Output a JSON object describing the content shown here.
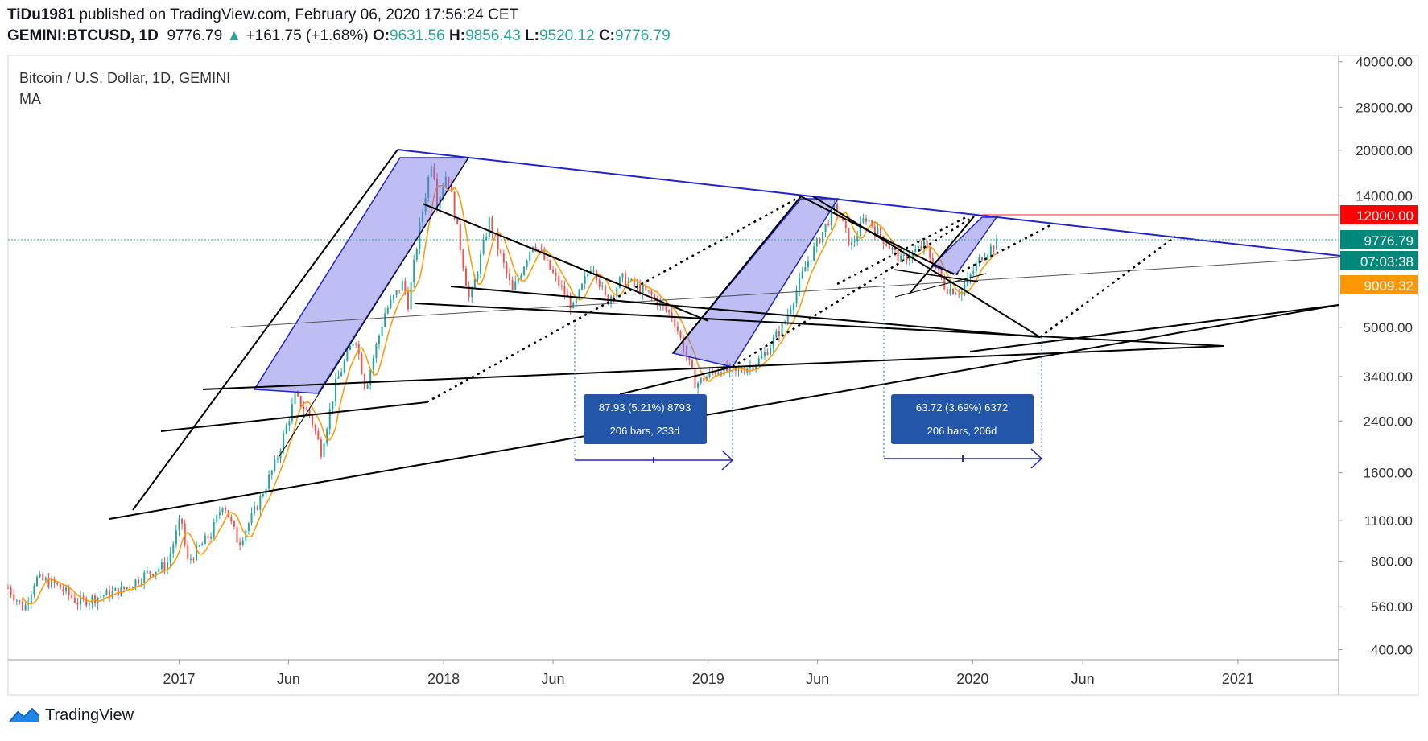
{
  "header": {
    "publisher": "TiDu1981",
    "published_text": "published on TradingView.com, February 06, 2020 17:56:24 CET",
    "symbol": "GEMINI:BTCUSD, 1D",
    "last": "9776.79",
    "arrow": "▲",
    "change": "+161.75 (+1.68%)",
    "o_label": "O:",
    "o": "9631.56",
    "h_label": "H:",
    "h": "9856.43",
    "l_label": "L:",
    "l": "9520.12",
    "c_label": "C:",
    "c": "9776.79"
  },
  "legend": {
    "title": "Bitcoin / U.S. Dollar, 1D, GEMINI",
    "indicator": "MA"
  },
  "price_badges": {
    "level": "12000.00",
    "last": "9776.79",
    "countdown": "07:03:38",
    "ma": "9009.32"
  },
  "measure_boxes": [
    {
      "line1": "87.93 (5.21%) 8793",
      "line2": "206 bars, 233d"
    },
    {
      "line1": "63.72 (3.69%) 6372",
      "line2": "206 bars, 206d"
    }
  ],
  "footer": {
    "brand": "TradingView"
  },
  "colors": {
    "up": "#26a69a",
    "down": "#ef5350",
    "ma": "#ff9800",
    "trend_blue": "#2124c8",
    "fill": "rgba(110,110,230,0.45)",
    "badge_red": "#ff0000",
    "badge_teal": "#00897b",
    "badge_orange": "#ff9800",
    "measure_box": "#2356a8"
  },
  "chart_data": {
    "type": "candlestick",
    "title": "Bitcoin / U.S. Dollar, 1D, GEMINI",
    "y_scale": "log",
    "ylim": [
      370,
      42000
    ],
    "x_range": [
      "2016-05-10",
      "2021-05-20"
    ],
    "y_ticks": [
      "40000.00",
      "28000.00",
      "20000.00",
      "14000.00",
      "5000.00",
      "3400.00",
      "2400.00",
      "1600.00",
      "1100.00",
      "800.00",
      "560.00",
      "400.00"
    ],
    "x_ticks": [
      {
        "label": "2017",
        "date": "2017-01-01"
      },
      {
        "label": "Jun",
        "date": "2017-06-01"
      },
      {
        "label": "2018",
        "date": "2018-01-01"
      },
      {
        "label": "Jun",
        "date": "2018-06-01"
      },
      {
        "label": "2019",
        "date": "2019-01-01"
      },
      {
        "label": "Jun",
        "date": "2019-06-01"
      },
      {
        "label": "2020",
        "date": "2020-01-01"
      },
      {
        "label": "Jun",
        "date": "2020-06-01"
      },
      {
        "label": "2021",
        "date": "2021-01-01"
      }
    ],
    "series": [
      {
        "name": "BTCUSD",
        "points": [
          [
            "2016-05-10",
            650
          ],
          [
            "2016-06-01",
            550
          ],
          [
            "2016-06-17",
            700
          ],
          [
            "2016-07-15",
            665
          ],
          [
            "2016-08-15",
            580
          ],
          [
            "2016-09-15",
            610
          ],
          [
            "2016-10-15",
            640
          ],
          [
            "2016-11-15",
            720
          ],
          [
            "2016-12-15",
            780
          ],
          [
            "2017-01-04",
            1130
          ],
          [
            "2017-01-12",
            790
          ],
          [
            "2017-02-15",
            1000
          ],
          [
            "2017-03-03",
            1280
          ],
          [
            "2017-03-24",
            920
          ],
          [
            "2017-04-15",
            1180
          ],
          [
            "2017-05-15",
            1750
          ],
          [
            "2017-06-10",
            2900
          ],
          [
            "2017-07-01",
            2500
          ],
          [
            "2017-07-16",
            1900
          ],
          [
            "2017-08-05",
            3200
          ],
          [
            "2017-09-01",
            4700
          ],
          [
            "2017-09-15",
            3100
          ],
          [
            "2017-10-12",
            5600
          ],
          [
            "2017-11-07",
            7200
          ],
          [
            "2017-11-12",
            5800
          ],
          [
            "2017-11-29",
            11000
          ],
          [
            "2017-12-17",
            19500
          ],
          [
            "2017-12-22",
            13000
          ],
          [
            "2018-01-06",
            17000
          ],
          [
            "2018-02-06",
            6100
          ],
          [
            "2018-03-05",
            11500
          ],
          [
            "2018-04-06",
            6600
          ],
          [
            "2018-05-05",
            9800
          ],
          [
            "2018-06-29",
            5800
          ],
          [
            "2018-07-25",
            8300
          ],
          [
            "2018-08-14",
            6100
          ],
          [
            "2018-09-04",
            7350
          ],
          [
            "2018-10-15",
            6400
          ],
          [
            "2018-11-14",
            5400
          ],
          [
            "2018-12-15",
            3200
          ],
          [
            "2019-01-15",
            3600
          ],
          [
            "2019-02-10",
            3500
          ],
          [
            "2019-03-15",
            3900
          ],
          [
            "2019-04-15",
            5100
          ],
          [
            "2019-05-15",
            8000
          ],
          [
            "2019-06-26",
            13000
          ],
          [
            "2019-07-17",
            9400
          ],
          [
            "2019-08-06",
            11900
          ],
          [
            "2019-09-24",
            8400
          ],
          [
            "2019-10-26",
            9500
          ],
          [
            "2019-11-25",
            6800
          ],
          [
            "2019-12-17",
            6600
          ],
          [
            "2020-01-14",
            8800
          ],
          [
            "2020-02-06",
            9776.79
          ]
        ]
      }
    ],
    "ma_last": 9009.32
  }
}
